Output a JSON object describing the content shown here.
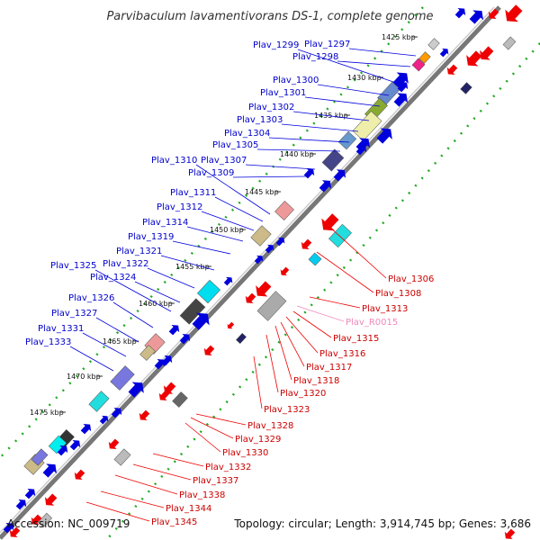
{
  "title": "Parvibaculum lavamentivorans DS-1, complete genome",
  "footer": {
    "accession": "Accession: NC_009719",
    "topology": "Topology: circular; Length: 3,914,745 bp; Genes: 3,686"
  },
  "colors": {
    "background": "#ffffff",
    "backbone": "#888888",
    "plus_strand": "#0000dd",
    "minus_strand": "#ee0000",
    "rna": "#ee88bb",
    "ruler_dots": "#22aa22"
  },
  "kbp_ticks": [
    "1425 kbp",
    "1430 kbp",
    "1435 kbp",
    "1440 kbp",
    "1445 kbp",
    "1450 kbp",
    "1455 kbp",
    "1460 kbp",
    "1465 kbp",
    "1470 kbp",
    "1475 kbp"
  ],
  "plus_labels": [
    "Plav_1297",
    "Plav_1298",
    "Plav_1299",
    "Plav_1300",
    "Plav_1301",
    "Plav_1302",
    "Plav_1303",
    "Plav_1304",
    "Plav_1305",
    "Plav_1307",
    "Plav_1309",
    "Plav_1310",
    "Plav_1311",
    "Plav_1312",
    "Plav_1314",
    "Plav_1319",
    "Plav_1321",
    "Plav_1322",
    "Plav_1324",
    "Plav_1325",
    "Plav_1326",
    "Plav_1327",
    "Plav_1331",
    "Plav_1333"
  ],
  "minus_labels": [
    "Plav_1306",
    "Plav_1308",
    "Plav_1313",
    "Plav_R0015",
    "Plav_1315",
    "Plav_1316",
    "Plav_1317",
    "Plav_1318",
    "Plav_1320",
    "Plav_1323",
    "Plav_1328",
    "Plav_1329",
    "Plav_1330",
    "Plav_1332",
    "Plav_1337",
    "Plav_1338",
    "Plav_1344",
    "Plav_1345"
  ]
}
